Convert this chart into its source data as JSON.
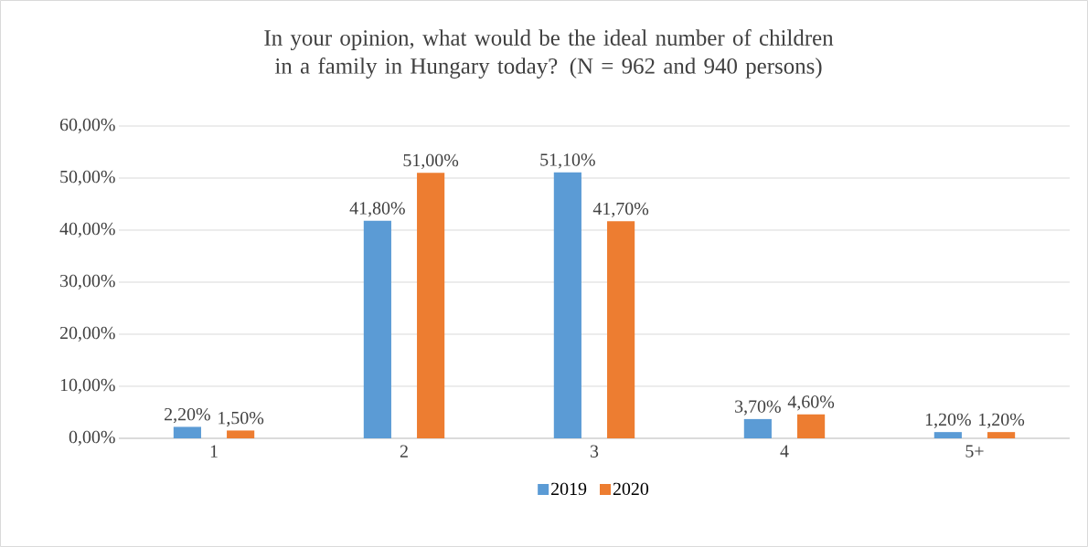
{
  "chart_data": {
    "type": "bar",
    "title": "In your opinion, what would be the ideal number of children in a family in Hungary today? (N = 962 and 940 persons)",
    "categories": [
      "1",
      "2",
      "3",
      "4",
      "5+"
    ],
    "series": [
      {
        "name": "2019",
        "color": "#5b9bd5",
        "values": [
          2.2,
          41.8,
          51.1,
          3.7,
          1.2
        ],
        "value_labels": [
          "2,20%",
          "41,80%",
          "51,10%",
          "3,70%",
          "1,20%"
        ]
      },
      {
        "name": "2020",
        "color": "#ed7d31",
        "values": [
          1.5,
          51.0,
          41.7,
          4.6,
          1.2
        ],
        "value_labels": [
          "1,50%",
          "51,00%",
          "41,70%",
          "4,60%",
          "1,20%"
        ]
      }
    ],
    "ylim": [
      0,
      60
    ],
    "yticks": [
      {
        "value": 0,
        "label": "0,00%"
      },
      {
        "value": 10,
        "label": "10,00%"
      },
      {
        "value": 20,
        "label": "20,00%"
      },
      {
        "value": 30,
        "label": "30,00%"
      },
      {
        "value": 40,
        "label": "40,00%"
      },
      {
        "value": 50,
        "label": "50,00%"
      },
      {
        "value": 60,
        "label": "60,00%"
      }
    ],
    "grid": "y",
    "legend": "bottom"
  }
}
